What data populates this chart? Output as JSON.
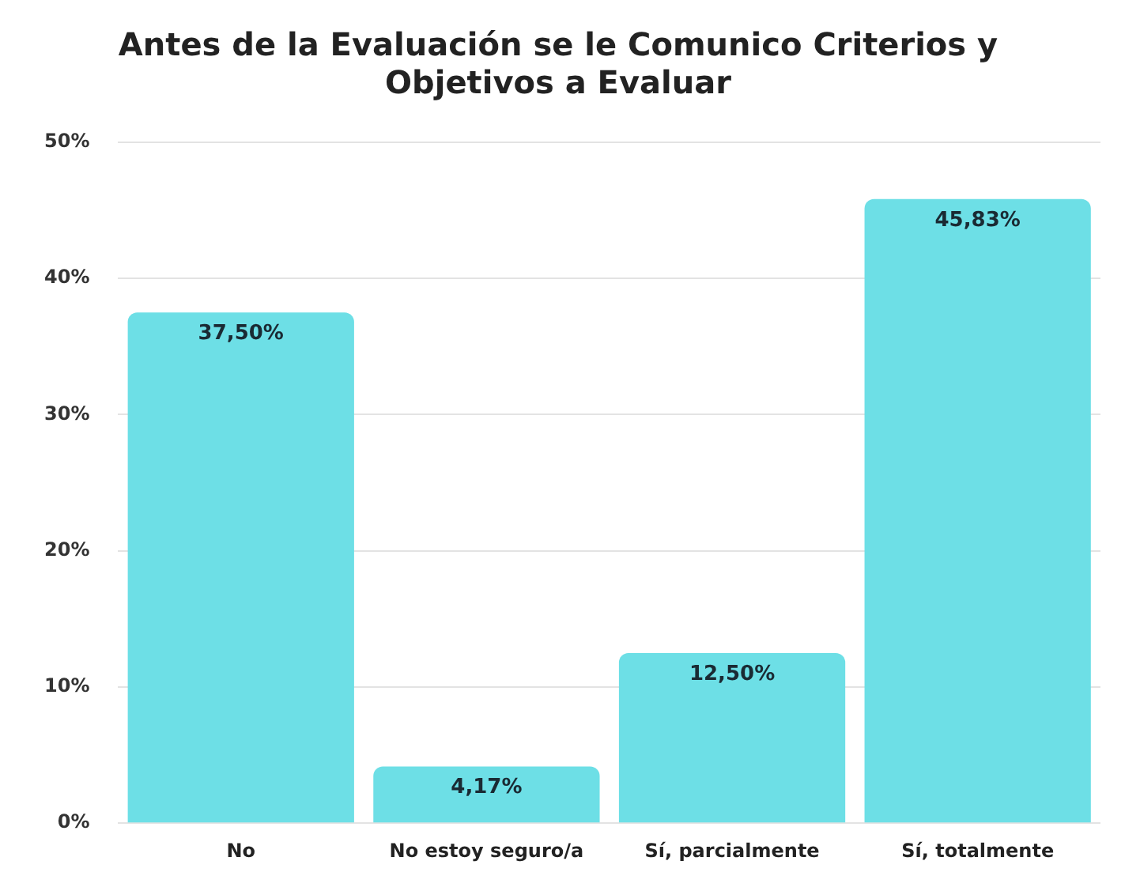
{
  "chart_data": {
    "type": "bar",
    "title": "Antes de la Evaluación se le Comunico Criterios y Objetivos a Evaluar",
    "categories": [
      "No",
      "No estoy seguro/a",
      "Sí, parcialmente",
      "Sí, totalmente"
    ],
    "values": [
      37.5,
      4.17,
      12.5,
      45.83
    ],
    "value_labels": [
      "37,50%",
      "4,17%",
      "12,50%",
      "45,83%"
    ],
    "color": "#6ddfe6",
    "ylim": [
      0,
      50
    ],
    "yticks": [
      {
        "value": 0,
        "label": "0%"
      },
      {
        "value": 10,
        "label": "10%"
      },
      {
        "value": 20,
        "label": "20%"
      },
      {
        "value": 30,
        "label": "30%"
      },
      {
        "value": 40,
        "label": "40%"
      },
      {
        "value": 50,
        "label": "50%"
      }
    ],
    "grid": "y",
    "legend": false
  }
}
